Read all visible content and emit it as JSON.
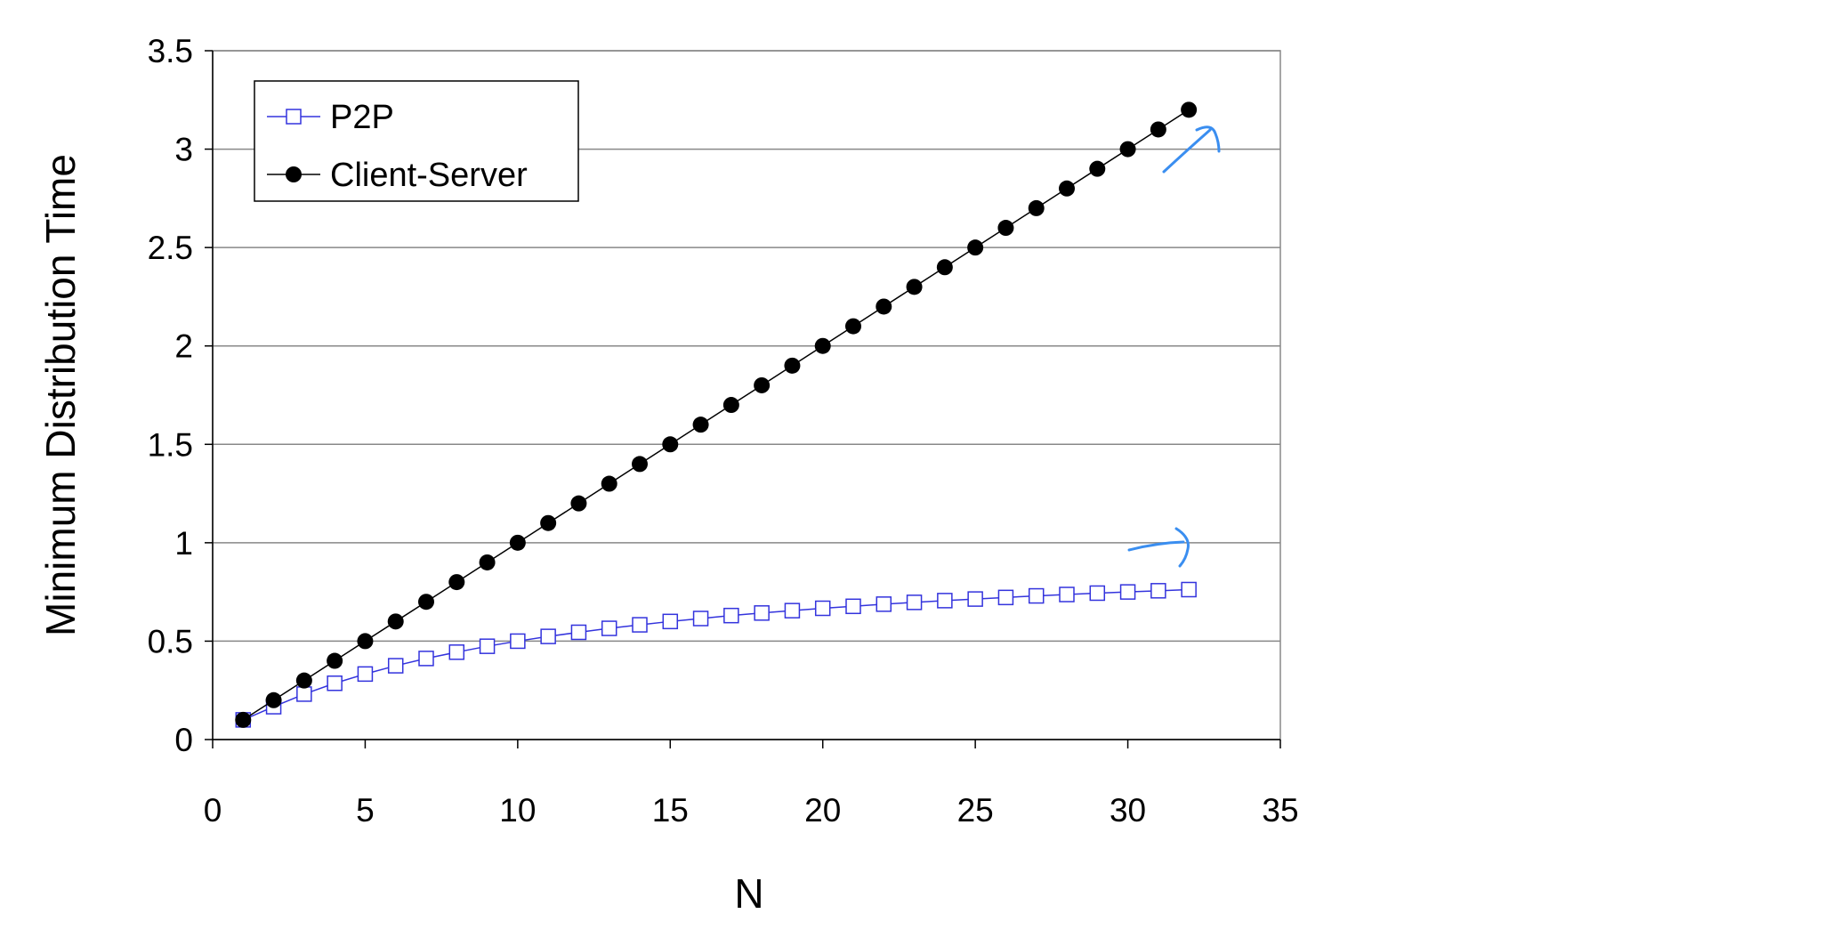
{
  "chart_data": {
    "type": "line",
    "title": "",
    "xlabel": "N",
    "ylabel": "Minimum Distribution Time",
    "xlim": [
      0,
      35
    ],
    "ylim": [
      0,
      3.5
    ],
    "xticks": [
      0,
      5,
      10,
      15,
      20,
      25,
      30,
      35
    ],
    "yticks": [
      0,
      0.5,
      1,
      1.5,
      2,
      2.5,
      3,
      3.5
    ],
    "ytick_labels": [
      "0",
      "0.5",
      "1",
      "1.5",
      "2",
      "2.5",
      "3",
      "3.5"
    ],
    "grid": "horizontal",
    "legend_position": "top-left",
    "x": [
      1,
      2,
      3,
      4,
      5,
      6,
      7,
      8,
      9,
      10,
      11,
      12,
      13,
      14,
      15,
      16,
      17,
      18,
      19,
      20,
      21,
      22,
      23,
      24,
      25,
      26,
      27,
      28,
      29,
      30,
      31,
      32
    ],
    "series": [
      {
        "name": "P2P",
        "color": "#3333dd",
        "marker": "open-square",
        "values": [
          0.1,
          0.167,
          0.231,
          0.286,
          0.333,
          0.375,
          0.412,
          0.444,
          0.474,
          0.5,
          0.524,
          0.545,
          0.565,
          0.583,
          0.6,
          0.615,
          0.63,
          0.643,
          0.655,
          0.667,
          0.677,
          0.688,
          0.697,
          0.706,
          0.714,
          0.722,
          0.73,
          0.737,
          0.744,
          0.75,
          0.756,
          0.762
        ]
      },
      {
        "name": "Client-Server",
        "color": "#000000",
        "marker": "filled-circle",
        "values": [
          0.1,
          0.2,
          0.3,
          0.4,
          0.5,
          0.6,
          0.7,
          0.8,
          0.9,
          1.0,
          1.1,
          1.2,
          1.3,
          1.4,
          1.5,
          1.6,
          1.7,
          1.8,
          1.9,
          2.0,
          2.1,
          2.2,
          2.3,
          2.4,
          2.5,
          2.6,
          2.7,
          2.8,
          2.9,
          3.0,
          3.1,
          3.2
        ]
      }
    ],
    "annotations": [
      {
        "type": "hand-drawn-arrow",
        "color": "#3a8ef0",
        "target_series": "Client-Server",
        "direction": "up-right"
      },
      {
        "type": "hand-drawn-arrow",
        "color": "#3a8ef0",
        "target_series": "P2P",
        "direction": "right"
      }
    ]
  }
}
